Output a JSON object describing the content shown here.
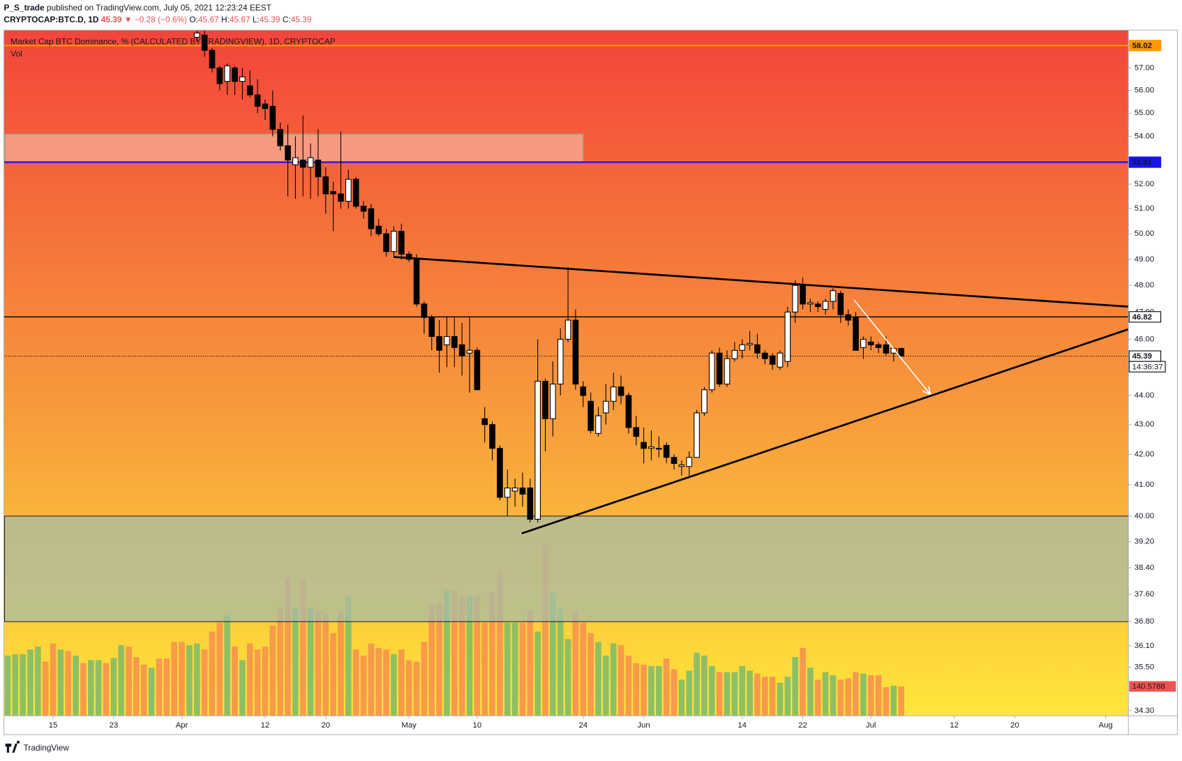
{
  "header": {
    "author": "P_S_trade",
    "published": "published on TradingView.com, July 05, 2021 12:23:24 EEST",
    "symbol": "CRYPTOCAP:BTC.D, 1D",
    "last": 45.39,
    "change": "▼ −0.28 (−0.6%)",
    "ohlc": [
      {
        "key": "O:",
        "value": 45.67
      },
      {
        "key": "H:",
        "value": 45.67
      },
      {
        "key": "L:",
        "value": 45.39
      },
      {
        "key": "C:",
        "value": 45.39
      }
    ]
  },
  "chart_data": {
    "type": "candlestick",
    "title": "Market Cap BTC Dominance, % (CALCULATED BY TRADINGVIEW), 1D, CRYPTOCAP",
    "log_scale": true,
    "ylim": [
      34.16,
      58.73
    ],
    "yticks": [
      {
        "value": 57,
        "label": "57.00"
      },
      {
        "value": 56,
        "label": "56.00"
      },
      {
        "value": 55,
        "label": "55.00"
      },
      {
        "value": 54,
        "label": "54.00"
      },
      {
        "value": 52,
        "label": "52.00"
      },
      {
        "value": 51,
        "label": "51.00"
      },
      {
        "value": 50,
        "label": "50.00"
      },
      {
        "value": 49,
        "label": "49.00"
      },
      {
        "value": 48,
        "label": "48.00"
      },
      {
        "value": 47,
        "label": "47.00"
      },
      {
        "value": 46,
        "label": "46.00"
      },
      {
        "value": 44,
        "label": "44.00"
      },
      {
        "value": 43,
        "label": "43.00"
      },
      {
        "value": 42,
        "label": "42.00"
      },
      {
        "value": 41,
        "label": "41.00"
      },
      {
        "value": 40,
        "label": "40.00"
      },
      {
        "value": 39.2,
        "label": "39.20"
      },
      {
        "value": 38.4,
        "label": "38.40"
      },
      {
        "value": 37.6,
        "label": "37.60"
      },
      {
        "value": 36.8,
        "label": "36.80"
      },
      {
        "value": 36.1,
        "label": "36.10"
      },
      {
        "value": 35.5,
        "label": "35.50"
      },
      {
        "value": 34.3,
        "label": "34.30"
      }
    ],
    "xlim": [
      "2021-03-08T12:00:00Z",
      "2021-08-04T00:00:00Z"
    ],
    "xticks": [
      {
        "value": "2021-03-15",
        "label": "15"
      },
      {
        "value": "2021-03-23",
        "label": "23"
      },
      {
        "value": "2021-04-01",
        "label": "Apr"
      },
      {
        "value": "2021-04-12",
        "label": "12"
      },
      {
        "value": "2021-04-20",
        "label": "20"
      },
      {
        "value": "2021-05-01",
        "label": "May"
      },
      {
        "value": "2021-05-10",
        "label": "10"
      },
      {
        "value": "2021-05-24",
        "label": "24"
      },
      {
        "value": "2021-06-01",
        "label": "Jun"
      },
      {
        "value": "2021-06-14",
        "label": "14"
      },
      {
        "value": "2021-06-22",
        "label": "22"
      },
      {
        "value": "2021-07-01",
        "label": "Jul"
      },
      {
        "value": "2021-07-12",
        "label": "12"
      },
      {
        "value": "2021-07-20",
        "label": "20"
      },
      {
        "value": "2021-08-01",
        "label": "Aug"
      }
    ],
    "x": [
      "2021-03-09",
      "2021-03-10",
      "2021-03-11",
      "2021-03-12",
      "2021-03-13",
      "2021-03-14",
      "2021-03-15",
      "2021-03-16",
      "2021-03-17",
      "2021-03-18",
      "2021-03-19",
      "2021-03-20",
      "2021-03-21",
      "2021-03-22",
      "2021-03-23",
      "2021-03-24",
      "2021-03-25",
      "2021-03-26",
      "2021-03-27",
      "2021-03-28",
      "2021-03-29",
      "2021-03-30",
      "2021-03-31",
      "2021-04-01",
      "2021-04-02",
      "2021-04-03",
      "2021-04-04",
      "2021-04-05",
      "2021-04-06",
      "2021-04-07",
      "2021-04-08",
      "2021-04-09",
      "2021-04-10",
      "2021-04-11",
      "2021-04-12",
      "2021-04-13",
      "2021-04-14",
      "2021-04-15",
      "2021-04-16",
      "2021-04-17",
      "2021-04-18",
      "2021-04-19",
      "2021-04-20",
      "2021-04-21",
      "2021-04-22",
      "2021-04-23",
      "2021-04-24",
      "2021-04-25",
      "2021-04-26",
      "2021-04-27",
      "2021-04-28",
      "2021-04-29",
      "2021-04-30",
      "2021-05-01",
      "2021-05-02",
      "2021-05-03",
      "2021-05-04",
      "2021-05-05",
      "2021-05-06",
      "2021-05-07",
      "2021-05-08",
      "2021-05-09",
      "2021-05-10",
      "2021-05-11",
      "2021-05-12",
      "2021-05-13",
      "2021-05-14",
      "2021-05-15",
      "2021-05-16",
      "2021-05-17",
      "2021-05-18",
      "2021-05-19",
      "2021-05-20",
      "2021-05-21",
      "2021-05-22",
      "2021-05-23",
      "2021-05-24",
      "2021-05-25",
      "2021-05-26",
      "2021-05-27",
      "2021-05-28",
      "2021-05-29",
      "2021-05-30",
      "2021-05-31",
      "2021-06-01",
      "2021-06-02",
      "2021-06-03",
      "2021-06-04",
      "2021-06-05",
      "2021-06-06",
      "2021-06-07",
      "2021-06-08",
      "2021-06-09",
      "2021-06-10",
      "2021-06-11",
      "2021-06-12",
      "2021-06-13",
      "2021-06-14",
      "2021-06-15",
      "2021-06-16",
      "2021-06-17",
      "2021-06-18",
      "2021-06-19",
      "2021-06-20",
      "2021-06-21",
      "2021-06-22",
      "2021-06-23",
      "2021-06-24",
      "2021-06-25",
      "2021-06-26",
      "2021-06-27",
      "2021-06-28",
      "2021-06-29",
      "2021-06-30",
      "2021-07-01",
      "2021-07-02",
      "2021-07-03",
      "2021-07-04",
      "2021-07-05"
    ],
    "open": [
      null,
      null,
      null,
      null,
      null,
      null,
      null,
      null,
      null,
      null,
      null,
      null,
      null,
      null,
      null,
      null,
      null,
      null,
      null,
      null,
      null,
      null,
      null,
      null,
      null,
      58.4,
      58.5,
      57.8,
      57.0,
      56.4,
      57.0,
      56.4,
      56.2,
      55.8,
      55.4,
      55.3,
      54.3,
      53.6,
      52.8,
      53.0,
      52.7,
      53.0,
      52.3,
      51.7,
      51.6,
      51.3,
      52.2,
      51.1,
      51.0,
      50.3,
      50.0,
      49.3,
      50.1,
      49.2,
      49.0,
      47.3,
      46.8,
      46.1,
      45.8,
      46.1,
      45.8,
      45.5,
      45.6,
      43.2,
      43.0,
      42.2,
      40.6,
      40.8,
      40.9,
      40.9,
      39.9,
      44.5,
      43.2,
      44.4,
      46.0,
      46.7,
      44.3,
      43.8,
      42.7,
      43.4,
      43.8,
      44.3,
      44.0,
      42.9,
      42.4,
      42.2,
      42.2,
      42.3,
      41.9,
      41.6,
      41.6,
      41.9,
      43.4,
      44.2,
      45.5,
      44.4,
      45.3,
      45.6,
      45.8,
      45.8,
      45.5,
      45.4,
      45.0,
      45.2,
      47.0,
      48.0,
      47.3,
      47.3,
      47.1,
      47.4,
      47.7,
      46.9,
      46.8,
      45.7,
      45.9,
      45.8,
      45.8,
      45.5,
      45.67
    ],
    "high": [
      null,
      null,
      null,
      null,
      null,
      null,
      null,
      null,
      null,
      null,
      null,
      null,
      null,
      null,
      null,
      null,
      null,
      null,
      null,
      null,
      null,
      null,
      null,
      null,
      null,
      58.7,
      58.7,
      57.9,
      57.1,
      57.2,
      57.1,
      57.0,
      56.9,
      56.5,
      55.6,
      56.0,
      54.6,
      54.5,
      54.0,
      54.9,
      53.7,
      54.3,
      52.7,
      52.1,
      54.2,
      52.6,
      52.3,
      51.3,
      51.2,
      50.6,
      50.2,
      50.3,
      50.4,
      49.3,
      49.2,
      47.4,
      46.9,
      46.7,
      46.8,
      46.8,
      46.6,
      46.8,
      45.7,
      43.6,
      43.1,
      42.3,
      41.5,
      41.2,
      41.4,
      41.2,
      46.0,
      44.6,
      45.2,
      46.4,
      48.7,
      47.1,
      44.5,
      44.1,
      43.6,
      44.4,
      44.8,
      44.7,
      44.1,
      43.3,
      42.9,
      42.8,
      42.6,
      42.4,
      42.0,
      41.8,
      42.1,
      43.5,
      44.3,
      45.6,
      45.7,
      45.6,
      45.9,
      46.0,
      46.3,
      46.2,
      45.6,
      45.5,
      45.6,
      47.2,
      48.2,
      48.3,
      47.5,
      47.4,
      47.5,
      47.9,
      47.8,
      47.1,
      47.0,
      46.1,
      46.1,
      45.9,
      46.1,
      45.7,
      45.67
    ],
    "low": [
      null,
      null,
      null,
      null,
      null,
      null,
      null,
      null,
      null,
      null,
      null,
      null,
      null,
      null,
      null,
      null,
      null,
      null,
      null,
      null,
      null,
      null,
      null,
      null,
      null,
      58.2,
      57.5,
      56.8,
      56.0,
      55.8,
      55.8,
      55.6,
      55.7,
      55.0,
      54.7,
      54.0,
      53.4,
      51.5,
      51.4,
      51.5,
      51.4,
      51.5,
      50.8,
      50.1,
      51.0,
      51.0,
      51.0,
      50.6,
      49.9,
      49.9,
      49.1,
      49.1,
      49.0,
      48.9,
      47.2,
      46.2,
      45.6,
      44.8,
      45.0,
      45.0,
      44.7,
      44.1,
      44.2,
      42.4,
      41.8,
      40.5,
      40.0,
      40.3,
      40.3,
      39.8,
      39.8,
      42.1,
      42.6,
      44.0,
      45.9,
      44.2,
      43.6,
      42.7,
      42.6,
      43.0,
      43.5,
      43.7,
      42.7,
      42.3,
      41.7,
      41.8,
      41.9,
      41.7,
      41.5,
      41.3,
      41.3,
      41.9,
      43.3,
      44.1,
      44.3,
      44.3,
      45.2,
      45.3,
      45.6,
      45.3,
      45.1,
      44.9,
      44.9,
      45.0,
      46.6,
      47.1,
      47.0,
      47.0,
      46.9,
      47.1,
      46.6,
      46.5,
      45.6,
      45.3,
      45.6,
      45.5,
      45.4,
      45.2,
      45.39
    ],
    "close": [
      null,
      null,
      null,
      null,
      null,
      null,
      null,
      null,
      null,
      null,
      null,
      null,
      null,
      null,
      null,
      null,
      null,
      null,
      null,
      null,
      null,
      null,
      null,
      null,
      null,
      58.6,
      57.8,
      57.0,
      56.3,
      57.1,
      56.4,
      56.6,
      55.8,
      55.3,
      55.2,
      54.3,
      53.6,
      53.0,
      53.1,
      52.7,
      53.1,
      52.3,
      51.6,
      51.6,
      51.3,
      52.2,
      51.1,
      50.9,
      50.2,
      50.0,
      49.3,
      50.1,
      49.2,
      49.0,
      47.3,
      46.8,
      46.1,
      45.6,
      46.1,
      45.7,
      45.4,
      45.6,
      44.2,
      43.0,
      42.2,
      40.6,
      40.9,
      40.9,
      40.7,
      39.9,
      44.5,
      43.2,
      44.4,
      46.0,
      46.7,
      44.4,
      44.0,
      42.8,
      43.3,
      43.8,
      44.3,
      44.0,
      42.9,
      42.6,
      42.2,
      42.25,
      42.2,
      41.9,
      41.7,
      41.65,
      41.9,
      43.4,
      44.2,
      45.5,
      44.4,
      45.3,
      45.6,
      45.8,
      45.85,
      45.5,
      45.3,
      45.1,
      45.5,
      47.0,
      48.0,
      47.3,
      47.35,
      47.2,
      47.4,
      47.8,
      46.9,
      46.7,
      45.6,
      46.0,
      45.8,
      45.7,
      45.5,
      45.67,
      45.39
    ],
    "up_color": "#ffffff",
    "down_color": "#000000",
    "volume": {
      "name": "Vol",
      "values": [
        288,
        295,
        295,
        317,
        331,
        259,
        346,
        317,
        310,
        288,
        252,
        266,
        266,
        252,
        277,
        338,
        331,
        281,
        245,
        230,
        274,
        274,
        353,
        353,
        338,
        346,
        317,
        403,
        446,
        482,
        331,
        266,
        346,
        317,
        331,
        432,
        518,
        662,
        518,
        655,
        518,
        504,
        490,
        396,
        497,
        576,
        317,
        288,
        346,
        324,
        317,
        295,
        317,
        266,
        259,
        353,
        533,
        540,
        598,
        598,
        576,
        576,
        576,
        446,
        590,
        691,
        446,
        446,
        446,
        504,
        403,
        817,
        590,
        511,
        367,
        497,
        446,
        396,
        353,
        288,
        346,
        338,
        288,
        252,
        245,
        238,
        238,
        274,
        223,
        173,
        216,
        302,
        288,
        238,
        209,
        209,
        209,
        238,
        216,
        202,
        187,
        187,
        158,
        187,
        281,
        324,
        230,
        173,
        209,
        194,
        173,
        180,
        209,
        202,
        194,
        194,
        137,
        144,
        140.5788
      ],
      "colors": [
        "#8fbf63",
        "#8fbf63",
        "#8fbf63",
        "#8fbf63",
        "#8fbf63",
        "#f79a4b",
        "#f79a4b",
        "#8fbf63",
        "#f79a4b",
        "#8fbf63",
        "#f79a4b",
        "#8fbf63",
        "#8fbf63",
        "#f79a4b",
        "#8fbf63",
        "#8fbf63",
        "#f79a4b",
        "#f79a4b",
        "#f79a4b",
        "#8fbf63",
        "#f79a4b",
        "#f79a4b",
        "#f79a4b",
        "#f79a4b",
        "#8fbf63",
        "#8fbf63",
        "#f79a4b",
        "#f79a4b",
        "#f79a4b",
        "#8fbf63",
        "#f79a4b",
        "#8fbf63",
        "#f79a4b",
        "#f79a4b",
        "#f79a4b",
        "#f79a4b",
        "#f79a4b",
        "#f79a4b",
        "#8fbf63",
        "#f79a4b",
        "#8fbf63",
        "#f79a4b",
        "#f79a4b",
        "#f79a4b",
        "#f79a4b",
        "#8fbf63",
        "#f79a4b",
        "#f79a4b",
        "#f79a4b",
        "#f79a4b",
        "#f79a4b",
        "#8fbf63",
        "#f79a4b",
        "#f79a4b",
        "#f79a4b",
        "#f79a4b",
        "#f79a4b",
        "#f79a4b",
        "#8fbf63",
        "#f79a4b",
        "#f79a4b",
        "#8fbf63",
        "#f79a4b",
        "#f79a4b",
        "#f79a4b",
        "#f79a4b",
        "#8fbf63",
        "#8fbf63",
        "#f79a4b",
        "#f79a4b",
        "#8fbf63",
        "#f79a4b",
        "#8fbf63",
        "#8fbf63",
        "#8fbf63",
        "#f79a4b",
        "#f79a4b",
        "#f79a4b",
        "#8fbf63",
        "#8fbf63",
        "#8fbf63",
        "#f79a4b",
        "#f79a4b",
        "#f79a4b",
        "#f79a4b",
        "#8fbf63",
        "#8fbf63",
        "#f79a4b",
        "#f79a4b",
        "#8fbf63",
        "#8fbf63",
        "#8fbf63",
        "#8fbf63",
        "#8fbf63",
        "#f79a4b",
        "#8fbf63",
        "#8fbf63",
        "#8fbf63",
        "#8fbf63",
        "#f79a4b",
        "#f79a4b",
        "#f79a4b",
        "#8fbf63",
        "#8fbf63",
        "#8fbf63",
        "#f79a4b",
        "#8fbf63",
        "#f79a4b",
        "#8fbf63",
        "#8fbf63",
        "#f79a4b",
        "#f79a4b",
        "#f79a4b",
        "#8fbf63",
        "#f79a4b",
        "#f79a4b",
        "#f79a4b",
        "#8fbf63",
        "#f79a4b"
      ]
    },
    "y2lim": [
      0,
      3280
    ],
    "levels": [
      {
        "value": 58.02,
        "color": "#ff9800",
        "text_color": "#000000",
        "style": "solid"
      },
      {
        "value": 52.91,
        "color": "#1515e6",
        "text_color": "#ffffff",
        "style": "solid"
      },
      {
        "value": 46.82,
        "color": "#000000",
        "text_color": "#000000",
        "style": "solid"
      },
      {
        "value": 45.39,
        "color": "#000000",
        "text_color": "#000000",
        "style": "dotted"
      }
    ],
    "countdown": "14:36:37",
    "zones": [
      {
        "from": 52.91,
        "to": 54.1,
        "end": "2021-05-24",
        "color": "#f7a08a"
      },
      {
        "from": 36.8,
        "to": 40,
        "color": "#a9bca6"
      }
    ]
  },
  "footer": "TradingView"
}
